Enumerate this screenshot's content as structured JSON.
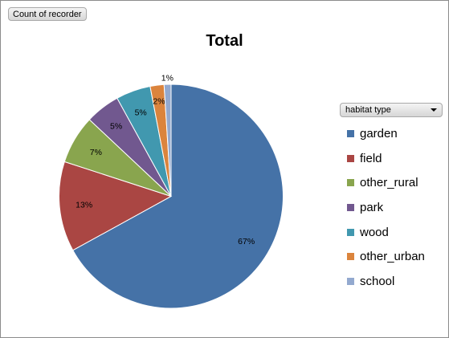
{
  "field_button": {
    "label": "Count of recorder"
  },
  "legend_dropdown": {
    "label": "habitat type"
  },
  "chart_data": {
    "type": "pie",
    "title": "Total",
    "legend_title": "habitat type",
    "legend_position": "right",
    "categories": [
      "garden",
      "field",
      "other_rural",
      "park",
      "wood",
      "other_urban",
      "school"
    ],
    "values": [
      67,
      13,
      7,
      5,
      5,
      2,
      1
    ],
    "labels": [
      "67%",
      "13%",
      "7%",
      "5%",
      "5%",
      "2%",
      "1%"
    ],
    "colors": [
      "#4572a7",
      "#aa4643",
      "#89a54e",
      "#71588f",
      "#4198af",
      "#db843d",
      "#93a9cf"
    ]
  }
}
